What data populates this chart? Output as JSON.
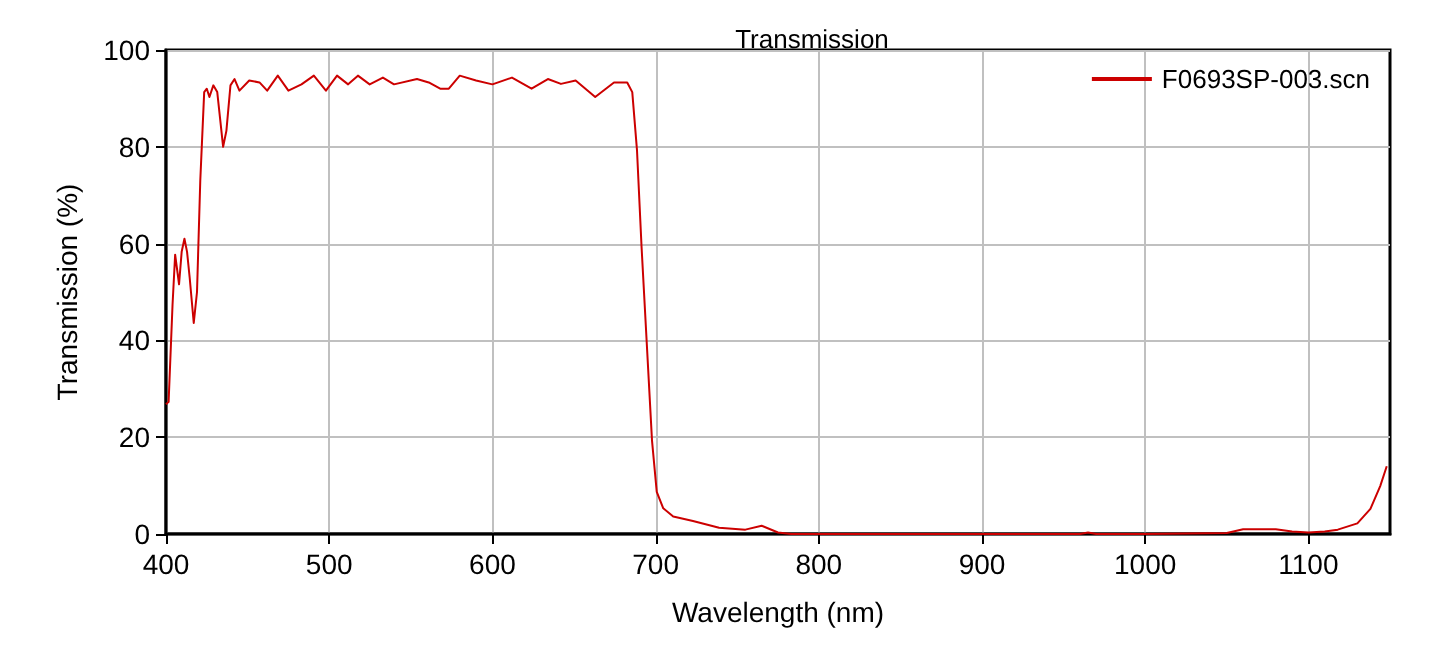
{
  "chart_data": {
    "type": "line",
    "title": "Transmission",
    "xlabel": "Wavelength (nm)",
    "ylabel": "Transmission (%)",
    "xlim": [
      400,
      1150
    ],
    "xticks": [
      400,
      500,
      600,
      700,
      800,
      900,
      1000,
      1100
    ],
    "ylim": [
      0,
      100
    ],
    "yticks": [
      0,
      20,
      40,
      60,
      80,
      100
    ],
    "grid": true,
    "legend": "top right",
    "marker": "none",
    "line_style": "solid",
    "series": [
      {
        "name": "F0693SP-003.scn",
        "color": "#cc0000",
        "x": [
          400,
          401.6,
          404,
          405.6,
          408,
          409.6,
          411.3,
          412.9,
          414.5,
          417,
          419,
          421,
          423.4,
          425,
          426.6,
          429,
          431.4,
          435,
          437,
          439.5,
          442,
          445,
          451,
          457.3,
          462,
          468.5,
          475,
          483,
          490.6,
          498,
          504.8,
          511.6,
          517.6,
          524.8,
          532.9,
          539.7,
          553.8,
          561,
          568,
          573.3,
          580,
          590,
          600,
          612,
          624,
          634,
          642,
          651,
          663,
          674.5,
          682.6,
          685.7,
          688.6,
          691.4,
          694.6,
          697.8,
          700.7,
          704.7,
          710.8,
          722.9,
          738.9,
          755,
          765,
          775,
          783,
          800,
          900,
          960,
          965,
          970,
          1000,
          1050,
          1060,
          1080,
          1090,
          1100,
          1110,
          1118,
          1130,
          1138,
          1144,
          1148
        ],
        "values": [
          26.8,
          27.3,
          47.3,
          57.7,
          51.6,
          58.3,
          61,
          58.3,
          53,
          43.6,
          50,
          73,
          91.3,
          92,
          90.3,
          92.7,
          91.3,
          80,
          83.3,
          92.7,
          94,
          91.6,
          93.7,
          93.3,
          91.6,
          94.7,
          91.6,
          92.9,
          94.7,
          91.6,
          94.7,
          92.9,
          94.7,
          92.9,
          94.3,
          92.9,
          94,
          93.3,
          92,
          92,
          94.7,
          93.7,
          92.9,
          94.3,
          92,
          94,
          93,
          93.7,
          90.3,
          93.3,
          93.3,
          91.3,
          79.3,
          59.3,
          39.3,
          19.3,
          8.7,
          5.3,
          3.6,
          2.7,
          1.3,
          0.9,
          1.7,
          0.3,
          0,
          0,
          0,
          0,
          0.3,
          0,
          0,
          0.2,
          1,
          1,
          0.5,
          0.3,
          0.5,
          0.9,
          2.2,
          5.2,
          9.9,
          14
        ]
      }
    ]
  }
}
